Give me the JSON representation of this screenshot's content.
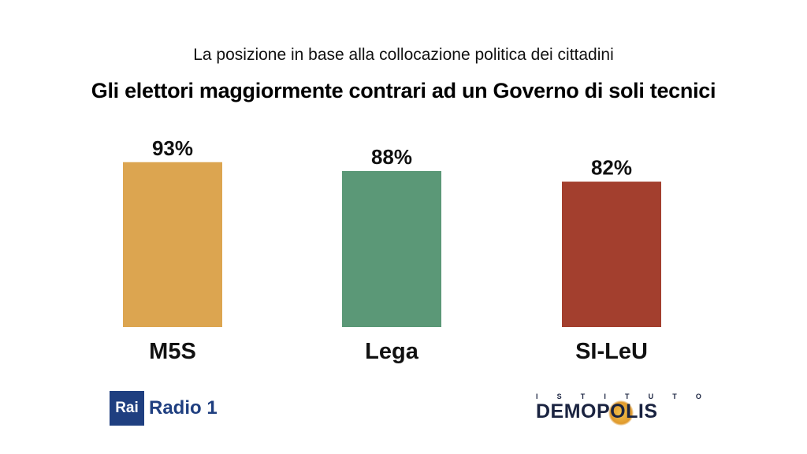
{
  "header": {
    "subtitle": "La posizione in base alla collocazione politica dei cittadini",
    "title": "Gli elettori maggiormente contrari ad un Governo di soli tecnici"
  },
  "chart_data": {
    "type": "bar",
    "categories": [
      "M5S",
      "Lega",
      "SI-LeU"
    ],
    "values": [
      93,
      88,
      82
    ],
    "value_labels": [
      "93%",
      "88%",
      "82%"
    ],
    "colors": [
      "#dca550",
      "#5b9877",
      "#a33f2e"
    ],
    "ylim": [
      0,
      100
    ],
    "grid": false
  },
  "footer": {
    "rai_box": "Rai",
    "rai_radio": "Radio 1",
    "demopolis_top": [
      "I",
      "S",
      "T",
      "I",
      "T",
      "U",
      "T",
      "O"
    ],
    "demopolis_main": "DEMOPOLIS"
  }
}
